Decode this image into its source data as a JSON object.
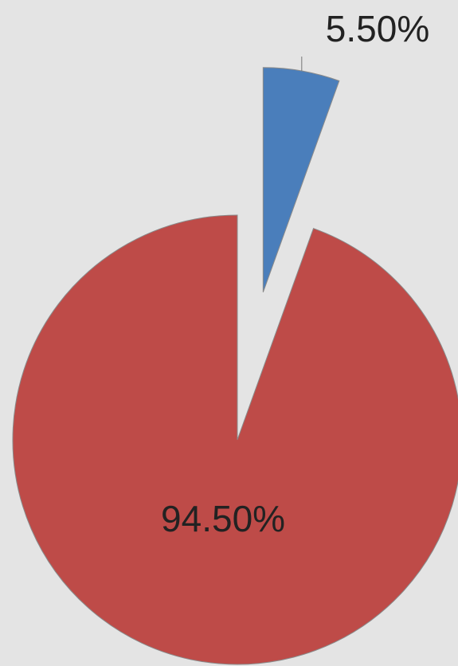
{
  "chart_data": {
    "type": "pie",
    "values": [
      5.5,
      94.5
    ],
    "value_labels": [
      "5.50%",
      "94.50%"
    ],
    "colors": [
      "#4a7ebb",
      "#be4b48"
    ]
  }
}
